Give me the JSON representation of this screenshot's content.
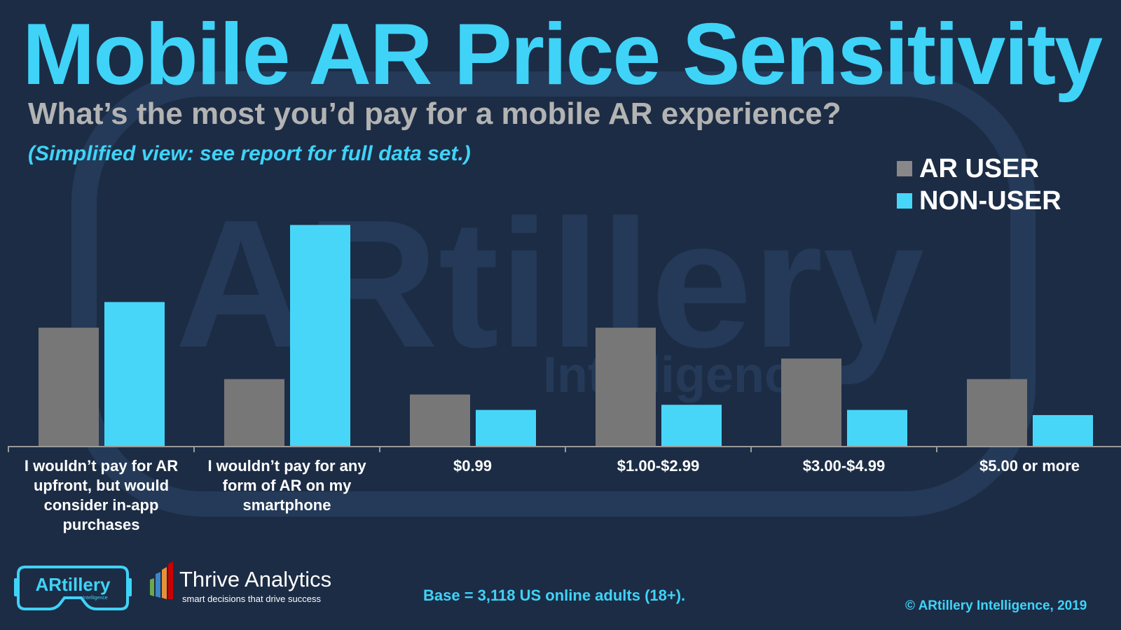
{
  "header": {
    "title": "Mobile AR Price Sensitivity",
    "subtitle": "What’s the most you’d pay for a mobile AR experience?",
    "note": "(Simplified view: see report for full data set.)"
  },
  "chart_data": {
    "type": "bar",
    "categories": [
      "I wouldn’t pay for AR upfront, but would consider in-app purchases",
      "I wouldn’t pay for any form of AR on my smartphone",
      "$0.99",
      "$1.00-$2.99",
      "$3.00-$4.99",
      "$5.00 or more"
    ],
    "series": [
      {
        "name": "AR USER",
        "color": "#777777",
        "values": [
          23,
          13,
          10,
          23,
          17,
          13
        ]
      },
      {
        "name": "NON-USER",
        "color": "#48d6f8",
        "values": [
          28,
          43,
          7,
          8,
          7,
          6
        ]
      }
    ],
    "ylim": [
      0,
      50
    ],
    "grid": false,
    "legend": "top-right",
    "title": "",
    "xlabel": "",
    "ylabel": ""
  },
  "watermark": {
    "word": "ARtillery",
    "sub": "Intelligence"
  },
  "footer": {
    "logo_text": "ARtillery",
    "logo_sub": "Intelligence",
    "thrive_name": "Thrive Analytics",
    "thrive_tagline": "smart decisions that drive success",
    "base_note": "Base = 3,118 US online adults (18+).",
    "copyright": "© ARtillery Intelligence, 2019"
  },
  "colors": {
    "background": "#1c2c45",
    "accent": "#3fd3f8",
    "subtitle": "#b3b3b3",
    "ar_user": "#777777",
    "non_user": "#48d6f8"
  }
}
